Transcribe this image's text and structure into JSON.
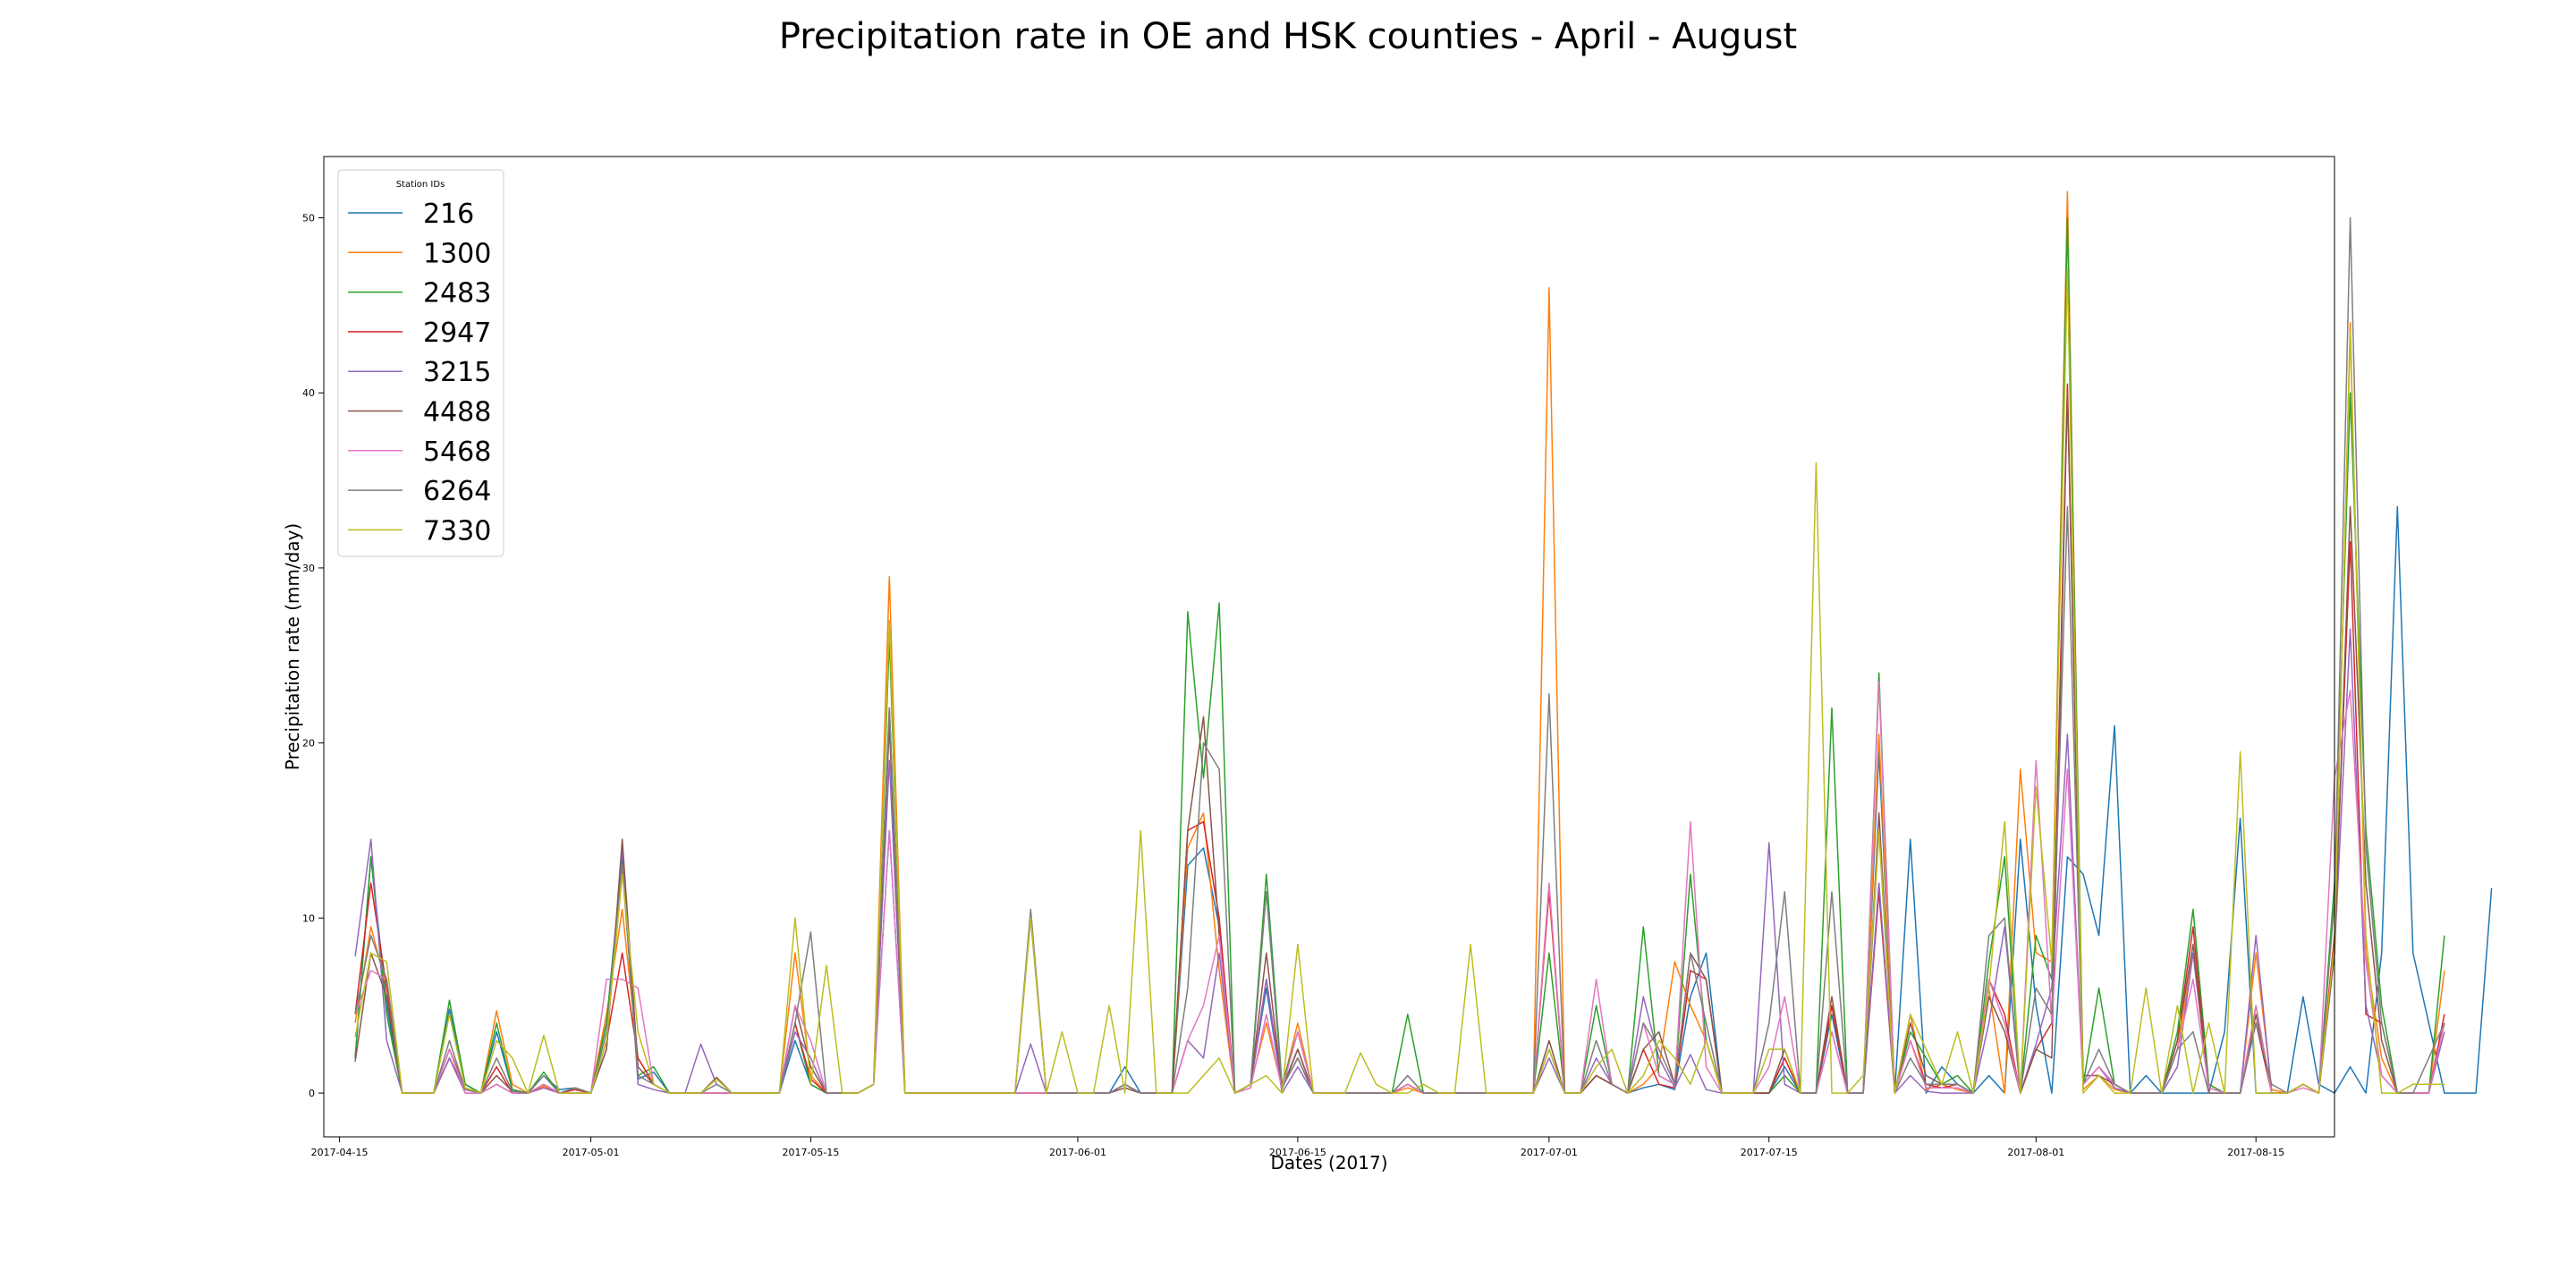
{
  "chart_data": {
    "type": "line",
    "title": "Precipitation rate in OE and HSK counties - April - August",
    "xlabel": "Dates (2017)",
    "ylabel": "Precipitation rate (mm/day)",
    "x_start": "2017-04-16",
    "x_range": [
      "2017-04-14",
      "2017-08-20"
    ],
    "ylim": [
      -2.5,
      53.5
    ],
    "x_ticks": [
      "2017-04-15",
      "2017-05-01",
      "2017-05-15",
      "2017-06-01",
      "2017-06-15",
      "2017-07-01",
      "2017-07-15",
      "2017-08-01",
      "2017-08-15"
    ],
    "y_ticks": [
      0,
      10,
      20,
      30,
      40,
      50
    ],
    "grid": false,
    "legend": {
      "title": "Station IDs",
      "position": "upper-left"
    },
    "series": [
      {
        "name": "216",
        "color": "#1f77b4",
        "values": [
          2.0,
          13.5,
          5.0,
          0,
          0,
          0,
          4.8,
          0.5,
          0,
          3.5,
          0.2,
          0,
          1.0,
          0.2,
          0.3,
          0,
          4.0,
          13.5,
          0.8,
          1.2,
          0,
          0,
          0,
          0,
          0,
          0,
          0,
          0,
          3.0,
          0.5,
          0,
          0,
          0,
          0.5,
          15.0,
          0,
          0,
          0,
          0,
          0,
          0,
          0,
          0,
          0,
          0,
          0,
          0,
          0,
          0,
          1.5,
          0,
          0,
          0,
          13.0,
          14.0,
          9.5,
          0,
          0.5,
          6.0,
          0.2,
          2.5,
          0,
          0,
          0,
          0,
          0,
          0,
          0.5,
          0,
          0,
          0,
          0,
          0,
          0,
          0,
          0,
          2.5,
          0,
          0,
          1.0,
          0.5,
          0,
          0.3,
          0.5,
          0.2,
          5.5,
          8.0,
          0,
          0,
          0,
          0,
          1.5,
          0,
          0,
          4.5,
          0,
          0,
          19.5,
          0,
          14.5,
          0,
          1.5,
          0.5,
          0,
          1.0,
          0,
          14.5,
          5.0,
          0,
          13.5,
          12.5,
          9.0,
          21.0,
          0,
          1.0,
          0,
          0,
          0,
          0,
          3.5,
          15.7,
          0,
          0,
          0,
          5.5,
          0.5,
          0,
          1.5,
          0,
          8.0,
          33.5,
          8.0,
          4.0,
          0,
          0,
          0,
          11.7
        ]
      },
      {
        "name": "1300",
        "color": "#ff7f0e",
        "values": [
          4.0,
          9.5,
          6.0,
          0,
          0,
          0,
          2.5,
          0.3,
          0,
          4.7,
          0.5,
          0,
          0.4,
          0,
          0.2,
          0,
          4.5,
          10.5,
          2.0,
          0.5,
          0,
          0,
          0,
          0,
          0,
          0,
          0,
          0,
          8.0,
          1.0,
          0,
          0,
          0,
          0.5,
          29.5,
          0,
          0,
          0,
          0,
          0,
          0,
          0,
          0,
          0,
          0,
          0,
          0,
          0,
          0,
          0.5,
          0,
          0,
          0,
          14.0,
          16.0,
          7.0,
          0,
          0.5,
          4.0,
          0.3,
          4.0,
          0,
          0,
          0,
          0,
          0,
          0,
          0.3,
          0,
          0,
          0,
          0,
          0,
          0,
          0,
          0,
          46.0,
          0,
          0,
          1.0,
          0.5,
          0,
          0.5,
          1.5,
          7.5,
          5.0,
          3.0,
          0,
          0,
          0,
          0,
          2.0,
          0,
          0,
          5.0,
          0,
          0,
          20.5,
          0,
          4.5,
          0.2,
          0.5,
          0.2,
          0,
          6.0,
          0,
          18.5,
          8.0,
          7.5,
          51.5,
          0.2,
          1.0,
          0.2,
          0,
          0,
          0,
          2.5,
          8.0,
          0.5,
          0,
          0,
          8.0,
          0.2,
          0,
          0.5,
          0,
          8.0,
          44.0,
          8.0,
          2.0,
          0,
          0,
          0,
          7.0
        ]
      },
      {
        "name": "2483",
        "color": "#2ca02c",
        "values": [
          2.0,
          13.5,
          4.5,
          0,
          0,
          0,
          5.3,
          0.5,
          0,
          4.0,
          0.2,
          0,
          1.2,
          0,
          0.3,
          0,
          4.0,
          13.0,
          1.0,
          1.5,
          0,
          0,
          0,
          0,
          0,
          0,
          0,
          0,
          4.0,
          0.5,
          0,
          0,
          0,
          0.5,
          26.0,
          0,
          0,
          0,
          0,
          0,
          0,
          0,
          0,
          0,
          0,
          0,
          0,
          0,
          0,
          0.5,
          0,
          0,
          0,
          27.5,
          18.0,
          28.0,
          0,
          0.5,
          12.5,
          0.5,
          3.5,
          0,
          0,
          0,
          0,
          0,
          0,
          4.5,
          0,
          0,
          0,
          0,
          0,
          0,
          0,
          0,
          8.0,
          0,
          0,
          5.0,
          0.5,
          0,
          9.5,
          1.0,
          0.5,
          12.5,
          3.0,
          0,
          0,
          0,
          0,
          1.0,
          0,
          0,
          22.0,
          0,
          0,
          24.0,
          0,
          3.5,
          2.0,
          0.5,
          1.0,
          0,
          7.5,
          13.5,
          0,
          9.0,
          6.5,
          50.0,
          0.5,
          6.0,
          0.5,
          0,
          0,
          0,
          3.5,
          10.5,
          0.5,
          0,
          0,
          5.0,
          0,
          0,
          0.5,
          0,
          12.0,
          40.0,
          15.0,
          5.0,
          0,
          0,
          0,
          9.0
        ]
      },
      {
        "name": "2947",
        "color": "#d62728",
        "values": [
          4.5,
          12.0,
          6.0,
          0,
          0,
          0,
          2.0,
          0.2,
          0,
          1.5,
          0,
          0,
          0.3,
          0,
          0.2,
          0,
          3.0,
          8.0,
          2.0,
          0.5,
          0,
          0,
          0,
          0,
          0,
          0,
          0,
          0,
          4.0,
          0.8,
          0,
          0,
          0,
          0.5,
          22.0,
          0,
          0,
          0,
          0,
          0,
          0,
          0,
          0,
          0,
          0,
          0,
          0,
          0,
          0,
          0.5,
          0,
          0,
          0,
          15.0,
          15.5,
          10.0,
          0,
          0.5,
          6.5,
          0.3,
          2.0,
          0,
          0,
          0,
          0,
          0,
          0,
          0.5,
          0,
          0,
          0,
          0,
          0,
          0,
          0,
          0,
          11.5,
          0,
          0,
          1.0,
          0.5,
          0,
          2.5,
          0.5,
          0.3,
          7.0,
          6.5,
          0,
          0,
          0,
          0,
          2.0,
          0,
          0,
          5.0,
          0,
          0,
          11.5,
          0,
          3.0,
          0.5,
          0.3,
          0.5,
          0,
          6.5,
          4.5,
          0,
          2.5,
          4.0,
          40.5,
          0.5,
          1.5,
          0.5,
          0,
          0,
          0,
          3.0,
          9.5,
          0,
          0,
          0,
          4.0,
          0,
          0,
          0.5,
          0,
          9.0,
          31.5,
          4.5,
          4.0,
          0,
          0,
          0,
          4.5
        ]
      },
      {
        "name": "3215",
        "color": "#9467bd",
        "values": [
          7.8,
          14.5,
          3.0,
          0,
          0,
          0,
          2.0,
          0,
          0,
          0.5,
          0,
          0,
          0.3,
          0,
          0,
          0,
          2.5,
          14.0,
          0.5,
          0.2,
          0,
          0,
          2.8,
          0.5,
          0,
          0,
          0,
          0,
          3.5,
          2.0,
          0,
          0,
          0,
          0.5,
          19.0,
          0,
          0,
          0,
          0,
          0,
          0,
          0,
          0,
          2.8,
          0,
          0,
          0,
          0,
          0,
          0.3,
          0,
          0,
          0,
          3.0,
          2.0,
          8.0,
          0,
          0.3,
          6.5,
          0,
          1.5,
          0,
          0,
          0,
          0,
          0,
          0,
          1.0,
          0,
          0,
          0,
          0,
          0,
          0,
          0,
          0,
          2.0,
          0,
          0,
          2.0,
          0.5,
          0,
          5.5,
          2.0,
          0.3,
          2.2,
          0.2,
          0,
          0,
          0,
          14.3,
          0.5,
          0,
          0,
          3.5,
          0,
          0,
          12.0,
          0,
          1.0,
          0.1,
          0,
          0,
          0,
          4.0,
          9.5,
          0,
          2.8,
          6.0,
          20.5,
          0.5,
          1.5,
          0.3,
          0,
          0,
          0,
          1.5,
          8.0,
          0.3,
          0,
          0,
          9.0,
          0,
          0,
          0.5,
          0,
          8.0,
          26.5,
          5.0,
          1.0,
          0,
          0,
          0,
          3.5
        ]
      },
      {
        "name": "4488",
        "color": "#8c564b",
        "values": [
          1.8,
          8.0,
          5.5,
          0,
          0,
          0,
          2.5,
          0.2,
          0,
          1.0,
          0.1,
          0,
          0.5,
          0,
          0,
          0,
          2.5,
          14.5,
          1.5,
          0.5,
          0,
          0,
          0,
          0.9,
          0,
          0,
          0,
          0,
          5.0,
          1.5,
          0,
          0,
          0,
          0.5,
          21.0,
          0,
          0,
          0,
          0,
          0,
          0,
          0,
          0,
          10.0,
          0,
          0,
          0,
          0,
          0,
          0.3,
          0,
          0,
          0,
          15.0,
          21.5,
          9.0,
          0,
          0.5,
          8.0,
          0.3,
          2.5,
          0,
          0,
          0,
          0,
          0,
          0,
          0.5,
          0,
          0,
          0,
          0,
          0,
          0,
          0,
          0,
          3.0,
          0,
          0,
          1.0,
          0.5,
          0,
          2.5,
          3.5,
          0.5,
          8.0,
          6.5,
          0,
          0,
          0,
          0,
          2.5,
          0,
          0,
          5.5,
          0,
          0,
          16.0,
          0,
          4.0,
          1.0,
          0.5,
          0.5,
          0,
          5.5,
          3.5,
          0,
          2.5,
          2.0,
          40.0,
          1.0,
          1.0,
          0.5,
          0,
          0,
          0,
          3.0,
          8.5,
          0,
          0,
          0,
          4.5,
          0,
          0,
          0.5,
          0,
          8.0,
          33.5,
          12.0,
          3.0,
          0,
          0,
          0,
          4.0
        ]
      },
      {
        "name": "5468",
        "color": "#e377c2",
        "values": [
          4.5,
          7.0,
          6.5,
          0,
          0,
          0,
          2.5,
          0,
          0,
          0.5,
          0,
          0,
          0.5,
          0,
          0,
          0,
          6.5,
          6.5,
          6.0,
          0.5,
          0,
          0,
          0,
          0,
          0,
          0,
          0,
          0,
          5.0,
          3.0,
          0,
          0,
          0,
          0.5,
          15.0,
          0,
          0,
          0,
          0,
          0,
          0,
          0,
          0,
          0,
          0,
          0,
          0,
          0,
          0,
          0.5,
          0,
          0,
          0,
          3.0,
          5.0,
          9.0,
          0,
          0.3,
          4.5,
          0.2,
          3.5,
          0,
          0,
          0,
          0,
          0,
          0,
          0.5,
          0,
          0,
          0,
          0,
          0,
          0,
          0,
          0,
          12.0,
          0,
          0,
          6.5,
          0.5,
          0,
          4.0,
          1.0,
          0.5,
          15.5,
          1.5,
          0,
          0,
          0,
          1.5,
          5.5,
          0,
          0,
          3.5,
          0,
          0,
          23.5,
          0,
          3.0,
          0.3,
          0.3,
          0.3,
          0,
          6.5,
          4.0,
          0,
          19.0,
          4.0,
          18.5,
          0.5,
          1.5,
          0.5,
          0,
          0,
          0,
          2.5,
          6.5,
          0.3,
          0,
          0,
          5.0,
          0,
          0,
          0.3,
          0,
          18.0,
          23.0,
          7.5,
          1.0,
          0,
          0,
          0,
          4.0
        ]
      },
      {
        "name": "6264",
        "color": "#7f7f7f",
        "values": [
          4.5,
          9.0,
          6.5,
          0,
          0,
          0,
          3.0,
          0.2,
          0,
          2.0,
          0.1,
          0,
          1.0,
          0,
          0.3,
          0,
          3.5,
          13.0,
          1.0,
          0.5,
          0,
          0,
          0,
          0.5,
          0,
          0,
          0,
          0,
          4.0,
          9.2,
          0,
          0,
          0,
          0.5,
          22.0,
          0,
          0,
          0,
          0,
          0,
          0,
          0,
          0,
          10.5,
          0,
          0,
          0,
          0,
          0,
          0.5,
          0,
          0,
          0,
          6.0,
          20.0,
          18.5,
          0,
          0.5,
          11.5,
          0.3,
          2.0,
          0,
          0,
          0,
          0,
          0,
          0,
          1.0,
          0,
          0,
          0,
          0,
          0,
          0,
          0,
          0,
          22.8,
          0,
          0,
          3.0,
          0.5,
          0,
          4.0,
          2.5,
          0.5,
          8.0,
          4.0,
          0,
          0,
          0,
          4.0,
          11.5,
          0,
          0,
          11.5,
          0,
          0,
          15.0,
          0,
          2.0,
          0.5,
          0.5,
          0.5,
          0,
          9.0,
          10.0,
          0,
          6.0,
          4.5,
          33.5,
          0.5,
          2.5,
          0.5,
          0,
          0,
          0,
          2.5,
          3.5,
          0,
          0,
          0,
          4.0,
          0.5,
          0,
          0.5,
          0,
          11.0,
          50.0,
          14.0,
          4.0,
          0,
          0,
          2.0,
          4.0
        ]
      },
      {
        "name": "7330",
        "color": "#bcbd22",
        "values": [
          3.2,
          8.0,
          7.5,
          0,
          0,
          0,
          4.5,
          0.3,
          0,
          3.0,
          2.0,
          0,
          3.3,
          0,
          0,
          0,
          3.0,
          12.5,
          3.5,
          0.5,
          0,
          0,
          0,
          0.8,
          0,
          0,
          0,
          0,
          10.0,
          0.5,
          7.3,
          0,
          0,
          0.5,
          27.0,
          0,
          0,
          0,
          0,
          0,
          0,
          0,
          0,
          10.0,
          0,
          3.5,
          0,
          0,
          5.0,
          0,
          15.0,
          0,
          0,
          0,
          1.0,
          2.0,
          0,
          0.5,
          1.0,
          0,
          8.5,
          0,
          0,
          0,
          2.3,
          0.5,
          0,
          0,
          0.5,
          0,
          0,
          8.5,
          0,
          0,
          0,
          0,
          2.5,
          0,
          0,
          1.5,
          2.5,
          0,
          1.0,
          3.0,
          2.0,
          0.5,
          3.0,
          0,
          0,
          0,
          2.5,
          2.5,
          0,
          36.0,
          0,
          0,
          1.0,
          15.0,
          0,
          4.5,
          2.5,
          0.5,
          3.5,
          0,
          6.0,
          15.5,
          0,
          17.5,
          7.5,
          47.0,
          0,
          1.0,
          0,
          0,
          6.0,
          0,
          5.0,
          0,
          4.0,
          0,
          19.5,
          0,
          0,
          0,
          0.5,
          0,
          8.5,
          43.5,
          9.0,
          0,
          0,
          0.5,
          0.5,
          0.5
        ]
      }
    ]
  }
}
